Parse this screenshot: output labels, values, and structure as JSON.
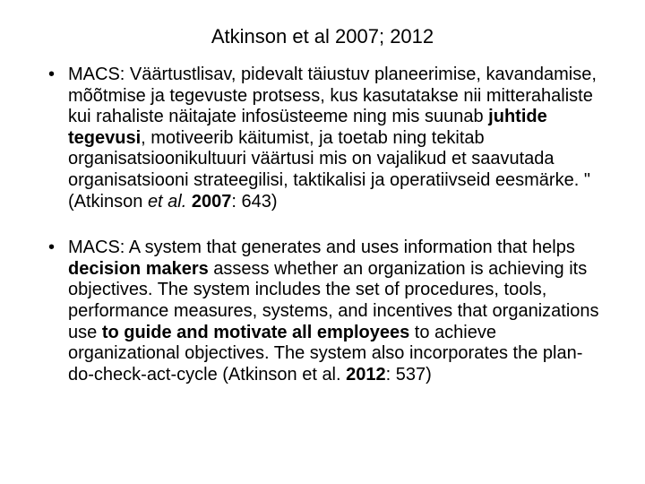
{
  "slide": {
    "title": "Atkinson et al 2007; 2012",
    "background_color": "#ffffff",
    "text_color": "#000000",
    "font_family": "Arial",
    "title_fontsize": 22,
    "body_fontsize": 20,
    "bullets": [
      {
        "runs": [
          {
            "text": "MACS: Väärtustlisav, pidevalt täiustuv planeerimise, kavandamise, mõõtmise ja tegevuste protsess, kus kasutatakse nii mitterahaliste kui rahaliste näitajate infosüsteeme ning mis suunab "
          },
          {
            "text": "juhtide tegevusi",
            "bold": true
          },
          {
            "text": ", motiveerib käitumist, ja toetab ning tekitab organisatsioonikultuuri väärtusi mis on vajalikud et saavutada organisatsiooni strateegilisi, taktikalisi ja operatiivseid eesmärke. \"(Atkinson "
          },
          {
            "text": "et al.",
            "italic": true
          },
          {
            "text": " "
          },
          {
            "text": "2007",
            "bold": true
          },
          {
            "text": ": 643)"
          }
        ]
      },
      {
        "runs": [
          {
            "text": "MACS: A system that generates and uses information that helps "
          },
          {
            "text": "decision makers",
            "bold": true
          },
          {
            "text": " assess whether an organization is achieving its objectives. The system includes the set of procedures, tools, performance measures, systems, and incentives that organizations use "
          },
          {
            "text": "to guide and motivate all employees",
            "bold": true
          },
          {
            "text": " to achieve organizational objectives. The system also incorporates the plan-do-check-act-cycle (Atkinson et al. "
          },
          {
            "text": "2012",
            "bold": true
          },
          {
            "text": ": 537)"
          }
        ]
      }
    ]
  }
}
